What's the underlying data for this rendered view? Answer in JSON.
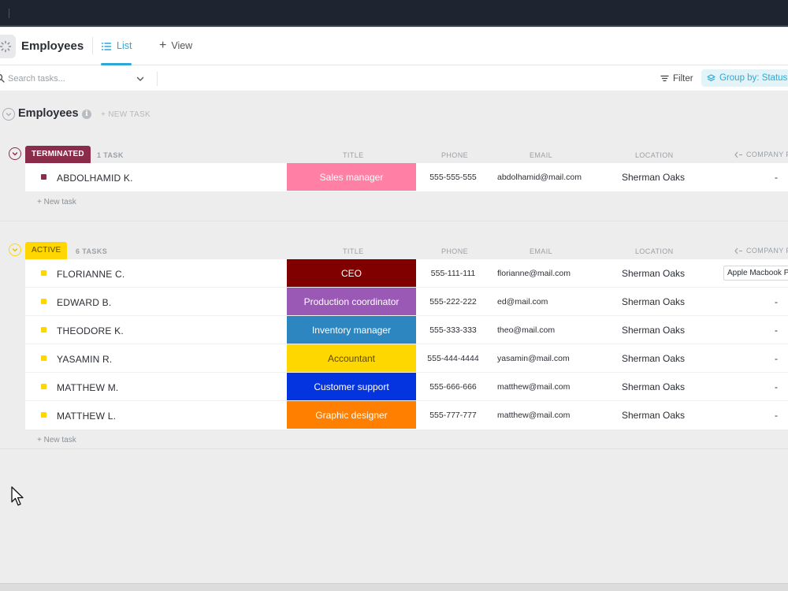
{
  "header": {
    "title": "Employees",
    "tabs": [
      {
        "label": "List",
        "active": true
      },
      {
        "label": "View",
        "active": false
      }
    ]
  },
  "toolbar": {
    "search_placeholder": "Search tasks...",
    "filter_label": "Filter",
    "group_label": "Group by: Status"
  },
  "list": {
    "title": "Employees",
    "new_task_label": "+ NEW TASK"
  },
  "columns": {
    "title": "TITLE",
    "phone": "PHONE",
    "email": "EMAIL",
    "location": "LOCATION",
    "company": "COMPANY P"
  },
  "groups": [
    {
      "status": "TERMINATED",
      "color": "#8b2c4a",
      "count_label": "1 TASK",
      "new_task_label": "+ New task",
      "rows": [
        {
          "name": "ABDOLHAMID K.",
          "title": "Sales manager",
          "title_color": "#ff7fa5",
          "phone": "555-555-555",
          "email": "abdolhamid@mail.com",
          "location": "Sherman Oaks",
          "company": "-"
        }
      ]
    },
    {
      "status": "ACTIVE",
      "color": "#ffd600",
      "count_label": "6 TASKS",
      "new_task_label": "+ New task",
      "rows": [
        {
          "name": "FLORIANNE C.",
          "title": "CEO",
          "title_color": "#800000",
          "phone": "555-111-111",
          "email": "florianne@mail.com",
          "location": "Sherman Oaks",
          "company": "Apple Macbook Pro"
        },
        {
          "name": "EDWARD B.",
          "title": "Production coordinator",
          "title_color": "#9b59b6",
          "phone": "555-222-222",
          "email": "ed@mail.com",
          "location": "Sherman Oaks",
          "company": "-"
        },
        {
          "name": "THEODORE K.",
          "title": "Inventory manager",
          "title_color": "#2e86c1",
          "phone": "555-333-333",
          "email": "theo@mail.com",
          "location": "Sherman Oaks",
          "company": "-"
        },
        {
          "name": "YASAMIN R.",
          "title": "Accountant",
          "title_color": "#ffd700",
          "phone": "555-444-4444",
          "email": "yasamin@mail.com",
          "location": "Sherman Oaks",
          "company": "-"
        },
        {
          "name": "MATTHEW M.",
          "title": "Customer support",
          "title_color": "#0433e0",
          "phone": "555-666-666",
          "email": "matthew@mail.com",
          "location": "Sherman Oaks",
          "company": "-"
        },
        {
          "name": "MATTHEW L.",
          "title": "Graphic designer",
          "title_color": "#ff7f00",
          "phone": "555-777-777",
          "email": "matthew@mail.com",
          "location": "Sherman Oaks",
          "company": "-"
        }
      ]
    }
  ]
}
